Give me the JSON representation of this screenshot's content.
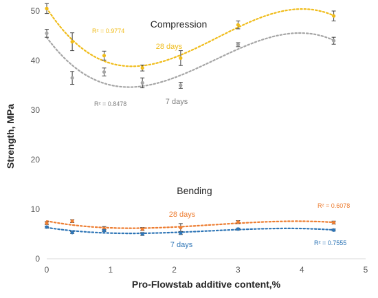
{
  "chart_data": {
    "type": "scatter",
    "xlabel": "Pro-Flowstab additive content,%",
    "ylabel": "Strength, MPa",
    "xlim": [
      0,
      5
    ],
    "ylim": [
      0,
      50
    ],
    "x_ticks": [
      "0",
      "1",
      "2",
      "3",
      "4",
      "5"
    ],
    "y_ticks": [
      "0",
      "10",
      "20",
      "30",
      "40",
      "50"
    ],
    "grid": false,
    "legend": "none",
    "annotations": [
      {
        "id": "compression-title",
        "text": "Compression"
      },
      {
        "id": "bending-title",
        "text": "Bending"
      }
    ],
    "series": [
      {
        "id": "comp28",
        "label": "28 days",
        "r2": "R² = 0.9774",
        "color": "#f0bc1a",
        "x": [
          0,
          0.4,
          0.9,
          1.5,
          2.1,
          3.0,
          4.5
        ],
        "values": [
          50.5,
          43.8,
          41.0,
          38.5,
          40.5,
          47.2,
          49.0
        ],
        "error": [
          1.0,
          1.8,
          0.9,
          0.6,
          1.5,
          0.8,
          1.0
        ],
        "trend_degree": 3
      },
      {
        "id": "comp7",
        "label": "7 days",
        "r2": "R² = 0.8478",
        "color": "#a5a5a5",
        "x": [
          0,
          0.4,
          0.9,
          1.5,
          2.1,
          3.0,
          4.5
        ],
        "values": [
          45.5,
          36.5,
          37.7,
          35.5,
          35.0,
          43.2,
          44.0
        ],
        "error": [
          0.8,
          1.3,
          0.8,
          1.0,
          0.6,
          0.4,
          0.7
        ],
        "trend_degree": 3
      },
      {
        "id": "bend28",
        "label": "28 days",
        "r2": "R² = 0.6078",
        "color": "#ed7d31",
        "x": [
          0,
          0.4,
          0.9,
          1.5,
          2.1,
          3.0,
          4.5
        ],
        "values": [
          7.2,
          7.6,
          6.1,
          6.0,
          6.3,
          7.4,
          7.3
        ],
        "error": [
          0.3,
          0.3,
          0.4,
          0.3,
          0.8,
          0.3,
          0.3
        ],
        "trend_degree": 3
      },
      {
        "id": "bend7",
        "label": "7 days",
        "r2": "R² = 0.7555",
        "color": "#2e75b6",
        "x": [
          0,
          0.4,
          0.9,
          1.5,
          2.1,
          3.0,
          4.5
        ],
        "values": [
          6.4,
          5.3,
          5.7,
          5.0,
          5.2,
          6.0,
          5.8
        ],
        "error": [
          0.2,
          0.2,
          0.2,
          0.3,
          0.3,
          0.2,
          0.2
        ],
        "trend_degree": 3
      }
    ]
  }
}
